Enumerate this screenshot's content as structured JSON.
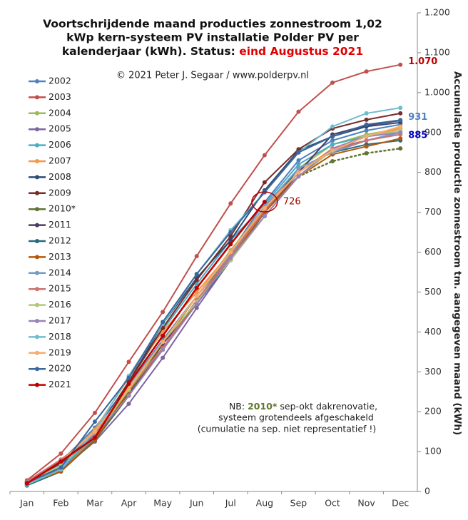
{
  "chart_data": {
    "type": "line",
    "title": [
      "Voortschrijdende maand producties zonnestroom 1,02",
      "kWp kern-systeem PV installatie Polder PV per",
      "kalenderjaar (kWh). Status: "
    ],
    "title_status": "eind Augustus 2021",
    "subtitle": "© 2021 Peter J. Segaar / www.polderpv.nl",
    "y_label": "Accumulatie productie zonnestroom tm. aangegeven maand (kWh)",
    "categories": [
      "Jan",
      "Feb",
      "Mar",
      "Apr",
      "May",
      "Jun",
      "Jul",
      "Aug",
      "Sep",
      "Oct",
      "Nov",
      "Dec"
    ],
    "ylim": [
      0,
      1200
    ],
    "yticks": [
      0,
      100,
      200,
      300,
      400,
      500,
      600,
      700,
      800,
      900,
      {
        "value": 1000,
        "label": "1.000"
      },
      {
        "value": 1100,
        "label": "1.100"
      },
      {
        "value": 1200,
        "label": "1.200"
      }
    ],
    "series": [
      {
        "name": "2002",
        "color": "#4f81bd",
        "values": [
          25,
          75,
          160,
          265,
          380,
          490,
          600,
          725,
          830,
          880,
          905,
          920
        ]
      },
      {
        "name": "2003",
        "color": "#c0504d",
        "values": [
          28,
          95,
          197,
          325,
          450,
          590,
          722,
          843,
          952,
          1025,
          1053,
          1070
        ]
      },
      {
        "name": "2004",
        "color": "#9bbb59",
        "values": [
          15,
          55,
          140,
          250,
          370,
          490,
          605,
          710,
          810,
          870,
          895,
          910
        ]
      },
      {
        "name": "2005",
        "color": "#8064a2",
        "values": [
          22,
          55,
          125,
          220,
          335,
          460,
          580,
          690,
          790,
          860,
          880,
          900
        ]
      },
      {
        "name": "2006",
        "color": "#4bacc6",
        "values": [
          15,
          50,
          135,
          275,
          405,
          520,
          630,
          720,
          820,
          870,
          890,
          905
        ]
      },
      {
        "name": "2007",
        "color": "#f79646",
        "values": [
          22,
          70,
          155,
          285,
          400,
          500,
          600,
          715,
          800,
          860,
          890,
          910
        ]
      },
      {
        "name": "2008",
        "color": "#2c4d75",
        "values": [
          20,
          55,
          145,
          275,
          420,
          535,
          630,
          755,
          855,
          890,
          915,
          925
        ]
      },
      {
        "name": "2009",
        "color": "#772c2a",
        "values": [
          22,
          60,
          140,
          275,
          410,
          530,
          640,
          775,
          858,
          910,
          932,
          948
        ]
      },
      {
        "name": "2010*",
        "color": "#5f7530",
        "dotted_from": "Sep",
        "values": [
          18,
          50,
          128,
          240,
          370,
          490,
          590,
          710,
          790,
          828,
          848,
          860
        ]
      },
      {
        "name": "2011",
        "color": "#4d3b62",
        "values": [
          25,
          70,
          145,
          260,
          370,
          470,
          580,
          700,
          800,
          895,
          918,
          930
        ]
      },
      {
        "name": "2012",
        "color": "#276a7c",
        "values": [
          15,
          50,
          130,
          245,
          360,
          470,
          580,
          700,
          810,
          850,
          870,
          880
        ]
      },
      {
        "name": "2013",
        "color": "#b65708",
        "values": [
          20,
          50,
          130,
          250,
          360,
          475,
          585,
          700,
          790,
          845,
          865,
          885
        ]
      },
      {
        "name": "2014",
        "color": "#729aca",
        "values": [
          20,
          60,
          150,
          265,
          375,
          490,
          595,
          715,
          810,
          850,
          880,
          900
        ]
      },
      {
        "name": "2015",
        "color": "#cd7371",
        "values": [
          25,
          80,
          145,
          255,
          360,
          480,
          590,
          705,
          800,
          855,
          880,
          895
        ]
      },
      {
        "name": "2016",
        "color": "#afc97a",
        "values": [
          22,
          65,
          140,
          255,
          375,
          475,
          580,
          690,
          790,
          855,
          890,
          905
        ]
      },
      {
        "name": "2017",
        "color": "#9983b5",
        "values": [
          20,
          60,
          140,
          240,
          355,
          470,
          585,
          690,
          790,
          860,
          890,
          900
        ]
      },
      {
        "name": "2018",
        "color": "#6fbdd1",
        "values": [
          17,
          55,
          150,
          290,
          420,
          545,
          655,
          750,
          850,
          915,
          948,
          962
        ]
      },
      {
        "name": "2019",
        "color": "#f9ab6b",
        "values": [
          20,
          75,
          150,
          260,
          375,
          490,
          600,
          710,
          800,
          855,
          890,
          915
        ]
      },
      {
        "name": "2020",
        "color": "#3a679c",
        "values": [
          22,
          60,
          175,
          285,
          425,
          545,
          650,
          750,
          850,
          890,
          920,
          931
        ]
      },
      {
        "name": "2021",
        "color": "#c00000",
        "values": [
          20,
          75,
          135,
          270,
          390,
          510,
          620,
          726,
          null,
          null,
          null,
          null
        ]
      }
    ],
    "annotations": [
      {
        "text": "1.070",
        "series": "2003",
        "at": "Dec",
        "color": "#c00000"
      },
      {
        "text": "931",
        "series": "2020",
        "at": "Dec",
        "color": "#4f81bd"
      },
      {
        "text": "885",
        "series": "2013",
        "at": "Dec",
        "color": "#0000c0"
      },
      {
        "text": "726",
        "series": "2021",
        "at": "Aug",
        "color": "#a00000"
      }
    ],
    "note": {
      "prefix": "NB: ",
      "highlight": "2010*",
      "lines": [
        " sep-okt dakrenovatie,",
        "systeem grotendeels afgeschakeld",
        "(cumulatie na sep. niet representatief !)"
      ]
    }
  }
}
